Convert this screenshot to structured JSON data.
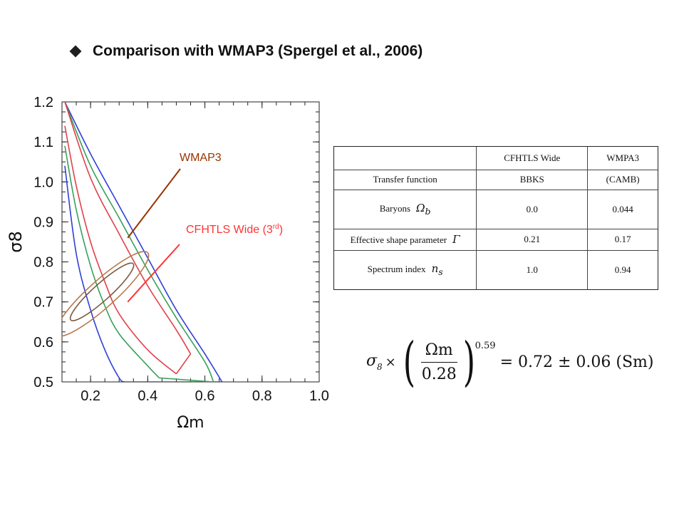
{
  "header": {
    "title": "Comparison with WMAP3 (Spergel et al., 2006)"
  },
  "chart_data": {
    "type": "contour",
    "xlabel": "Ωm",
    "ylabel": "σ8",
    "xlim": [
      0.1,
      1.0
    ],
    "ylim": [
      0.5,
      1.2
    ],
    "xticks": [
      "0.2",
      "0.4",
      "0.6",
      "0.8",
      "1.0"
    ],
    "yticks": [
      "0.5",
      "0.6",
      "0.7",
      "0.8",
      "0.9",
      "1.0",
      "1.1",
      "1.2"
    ],
    "grid": false,
    "series": [
      {
        "name": "CFHTLS Wide (3rd)",
        "color": "#2f3fd6",
        "kind": "banana-outer",
        "lower": [
          [
            0.11,
            1.04
          ],
          [
            0.15,
            0.82
          ],
          [
            0.2,
            0.68
          ],
          [
            0.25,
            0.58
          ],
          [
            0.3,
            0.51
          ],
          [
            0.32,
            0.5
          ]
        ],
        "upper": [
          [
            0.11,
            1.2
          ],
          [
            0.2,
            1.07
          ],
          [
            0.3,
            0.94
          ],
          [
            0.4,
            0.81
          ],
          [
            0.5,
            0.68
          ],
          [
            0.6,
            0.57
          ],
          [
            0.66,
            0.5
          ]
        ]
      },
      {
        "name": "CFHTLS Wide (3rd)",
        "color": "#3aa05a",
        "kind": "banana-middle",
        "lower": [
          [
            0.11,
            1.09
          ],
          [
            0.15,
            0.93
          ],
          [
            0.2,
            0.79
          ],
          [
            0.25,
            0.69
          ],
          [
            0.3,
            0.62
          ],
          [
            0.4,
            0.54
          ],
          [
            0.44,
            0.51
          ]
        ],
        "upper": [
          [
            0.11,
            1.2
          ],
          [
            0.2,
            1.04
          ],
          [
            0.3,
            0.91
          ],
          [
            0.4,
            0.78
          ],
          [
            0.5,
            0.66
          ],
          [
            0.6,
            0.55
          ],
          [
            0.63,
            0.5
          ]
        ]
      },
      {
        "name": "CFHTLS Wide (3rd)",
        "color": "#e0414a",
        "kind": "banana-inner",
        "lower": [
          [
            0.11,
            1.14
          ],
          [
            0.15,
            0.99
          ],
          [
            0.2,
            0.85
          ],
          [
            0.25,
            0.75
          ],
          [
            0.3,
            0.67
          ],
          [
            0.4,
            0.58
          ],
          [
            0.5,
            0.52
          ]
        ],
        "upper": [
          [
            0.11,
            1.2
          ],
          [
            0.2,
            1.01
          ],
          [
            0.3,
            0.87
          ],
          [
            0.4,
            0.74
          ],
          [
            0.5,
            0.63
          ],
          [
            0.55,
            0.57
          ]
        ]
      },
      {
        "name": "WMAP3",
        "color": "#b77a4e",
        "kind": "ellipse",
        "center": [
          0.24,
          0.72
        ],
        "semi_major": 0.205,
        "semi_minor": 0.045,
        "angle_deg": -42
      },
      {
        "name": "WMAP3",
        "color": "#7a5b43",
        "kind": "ellipse",
        "center": [
          0.24,
          0.725
        ],
        "semi_major": 0.14,
        "semi_minor": 0.028,
        "angle_deg": -42
      }
    ],
    "annotations": [
      {
        "text": "WMAP3",
        "color": "#993300",
        "pointer_to": [
          0.33,
          0.86
        ]
      },
      {
        "text": "CFHTLS Wide (3",
        "sup": "rd",
        "close": ")",
        "color": "#ff3333",
        "pointer_to": [
          0.33,
          0.7
        ]
      }
    ]
  },
  "table": {
    "headers": [
      "",
      "CFHTLS Wide",
      "WMPA3"
    ],
    "rows": [
      {
        "label": "Transfer function",
        "symbol": "",
        "values": [
          "BBKS",
          "(CAMB)"
        ]
      },
      {
        "label": "Baryons",
        "symbol": "Ω",
        "symbol_sub": "b",
        "values": [
          "0.0",
          "0.044"
        ]
      },
      {
        "label": "Effective shape parameter",
        "symbol": "Γ",
        "symbol_sub": "",
        "values": [
          "0.21",
          "0.17"
        ]
      },
      {
        "label": "Spectrum index",
        "symbol": "n",
        "symbol_sub": "s",
        "values": [
          "1.0",
          "0.94"
        ]
      }
    ]
  },
  "formula": {
    "sigma": "σ",
    "sigma_sub": "8",
    "times": "×",
    "numerator": "Ωm",
    "denominator": "0.28",
    "exponent": "0.59",
    "rhs": "= 0.72 ± 0.06 (Sm)"
  }
}
